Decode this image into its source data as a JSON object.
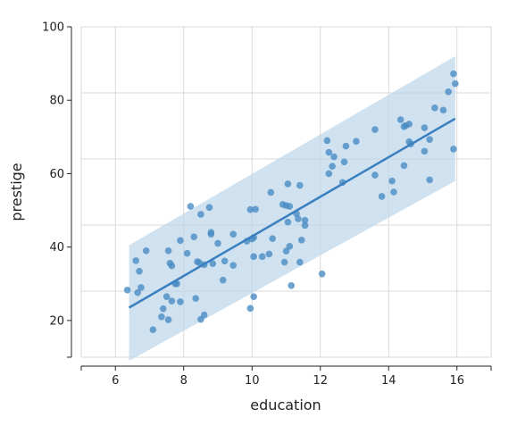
{
  "chart_data": {
    "type": "scatter",
    "title": "",
    "xlabel": "education",
    "ylabel": "prestige",
    "xlim": [
      5,
      17
    ],
    "ylim": [
      10,
      100
    ],
    "xticks": [
      6,
      8,
      10,
      12,
      14,
      16
    ],
    "yticks": [
      20,
      40,
      60,
      80,
      100
    ],
    "x_tick_labels": [
      "6",
      "8",
      "10",
      "12",
      "14",
      "16"
    ],
    "y_tick_labels": [
      "20",
      "40",
      "60",
      "80",
      "100"
    ],
    "grid": true,
    "legend": "none",
    "colors": {
      "points": "#4a8cc4",
      "fit_line": "#3a7fbf",
      "band": "#bcd6ea",
      "grid": "#d9d9d9",
      "axis": "#222222"
    },
    "regression": {
      "x": [
        6.4,
        15.95
      ],
      "y": [
        23.5,
        75.0
      ],
      "band_upper": [
        40.5,
        92.0
      ],
      "band_lower": [
        6.5,
        58.0
      ]
    },
    "points": [
      {
        "x": 6.35,
        "y": 28.3
      },
      {
        "x": 6.6,
        "y": 36.3
      },
      {
        "x": 6.7,
        "y": 33.4
      },
      {
        "x": 6.75,
        "y": 29.0
      },
      {
        "x": 6.65,
        "y": 27.6
      },
      {
        "x": 6.9,
        "y": 39.0
      },
      {
        "x": 7.1,
        "y": 17.5
      },
      {
        "x": 7.35,
        "y": 21.0
      },
      {
        "x": 7.4,
        "y": 23.2
      },
      {
        "x": 7.5,
        "y": 26.5
      },
      {
        "x": 7.55,
        "y": 39.0
      },
      {
        "x": 7.55,
        "y": 20.2
      },
      {
        "x": 7.6,
        "y": 35.6
      },
      {
        "x": 7.65,
        "y": 34.9
      },
      {
        "x": 7.65,
        "y": 25.3
      },
      {
        "x": 7.75,
        "y": 30.0
      },
      {
        "x": 7.8,
        "y": 30.0
      },
      {
        "x": 7.9,
        "y": 41.8
      },
      {
        "x": 7.9,
        "y": 25.1
      },
      {
        "x": 8.1,
        "y": 38.3
      },
      {
        "x": 8.2,
        "y": 51.1
      },
      {
        "x": 8.3,
        "y": 42.8
      },
      {
        "x": 8.35,
        "y": 26.0
      },
      {
        "x": 8.4,
        "y": 36.0
      },
      {
        "x": 8.45,
        "y": 35.8
      },
      {
        "x": 8.5,
        "y": 48.9
      },
      {
        "x": 8.5,
        "y": 20.3
      },
      {
        "x": 8.6,
        "y": 35.2
      },
      {
        "x": 8.6,
        "y": 21.5
      },
      {
        "x": 8.75,
        "y": 50.8
      },
      {
        "x": 8.8,
        "y": 43.5
      },
      {
        "x": 8.8,
        "y": 44.0
      },
      {
        "x": 8.85,
        "y": 35.5
      },
      {
        "x": 9.0,
        "y": 41.0
      },
      {
        "x": 9.15,
        "y": 31.0
      },
      {
        "x": 9.2,
        "y": 36.2
      },
      {
        "x": 9.45,
        "y": 43.5
      },
      {
        "x": 9.45,
        "y": 35.0
      },
      {
        "x": 9.85,
        "y": 41.6
      },
      {
        "x": 9.95,
        "y": 50.2
      },
      {
        "x": 9.95,
        "y": 23.3
      },
      {
        "x": 10.0,
        "y": 42.2
      },
      {
        "x": 10.05,
        "y": 42.6
      },
      {
        "x": 10.05,
        "y": 26.5
      },
      {
        "x": 10.1,
        "y": 50.3
      },
      {
        "x": 10.05,
        "y": 37.4
      },
      {
        "x": 10.3,
        "y": 37.4
      },
      {
        "x": 10.5,
        "y": 38.1
      },
      {
        "x": 10.55,
        "y": 54.9
      },
      {
        "x": 10.6,
        "y": 42.3
      },
      {
        "x": 10.9,
        "y": 51.6
      },
      {
        "x": 11.0,
        "y": 51.3
      },
      {
        "x": 10.95,
        "y": 35.9
      },
      {
        "x": 11.05,
        "y": 57.2
      },
      {
        "x": 11.1,
        "y": 51.1
      },
      {
        "x": 11.0,
        "y": 38.9
      },
      {
        "x": 11.1,
        "y": 40.2
      },
      {
        "x": 11.05,
        "y": 46.8
      },
      {
        "x": 11.15,
        "y": 29.5
      },
      {
        "x": 11.3,
        "y": 49.1
      },
      {
        "x": 11.35,
        "y": 47.7
      },
      {
        "x": 11.4,
        "y": 56.8
      },
      {
        "x": 11.4,
        "y": 35.9
      },
      {
        "x": 11.45,
        "y": 41.9
      },
      {
        "x": 11.55,
        "y": 47.3
      },
      {
        "x": 11.55,
        "y": 45.9
      },
      {
        "x": 12.05,
        "y": 32.7
      },
      {
        "x": 12.2,
        "y": 69.0
      },
      {
        "x": 12.25,
        "y": 65.8
      },
      {
        "x": 12.25,
        "y": 60.0
      },
      {
        "x": 12.35,
        "y": 62.0
      },
      {
        "x": 12.4,
        "y": 64.6
      },
      {
        "x": 12.65,
        "y": 57.6
      },
      {
        "x": 12.7,
        "y": 63.2
      },
      {
        "x": 12.75,
        "y": 67.5
      },
      {
        "x": 13.05,
        "y": 68.8
      },
      {
        "x": 13.6,
        "y": 72.0
      },
      {
        "x": 13.6,
        "y": 59.6
      },
      {
        "x": 13.8,
        "y": 53.8
      },
      {
        "x": 14.1,
        "y": 58.0
      },
      {
        "x": 14.15,
        "y": 55.0
      },
      {
        "x": 14.35,
        "y": 74.7
      },
      {
        "x": 14.45,
        "y": 72.8
      },
      {
        "x": 14.5,
        "y": 73.1
      },
      {
        "x": 14.6,
        "y": 73.5
      },
      {
        "x": 14.45,
        "y": 62.2
      },
      {
        "x": 14.6,
        "y": 68.7
      },
      {
        "x": 14.65,
        "y": 68.1
      },
      {
        "x": 15.05,
        "y": 72.5
      },
      {
        "x": 15.05,
        "y": 66.1
      },
      {
        "x": 15.2,
        "y": 69.3
      },
      {
        "x": 15.2,
        "y": 58.3
      },
      {
        "x": 15.35,
        "y": 77.9
      },
      {
        "x": 15.6,
        "y": 77.3
      },
      {
        "x": 15.75,
        "y": 82.3
      },
      {
        "x": 15.9,
        "y": 87.2
      },
      {
        "x": 15.95,
        "y": 84.5
      },
      {
        "x": 15.9,
        "y": 66.7
      }
    ]
  }
}
